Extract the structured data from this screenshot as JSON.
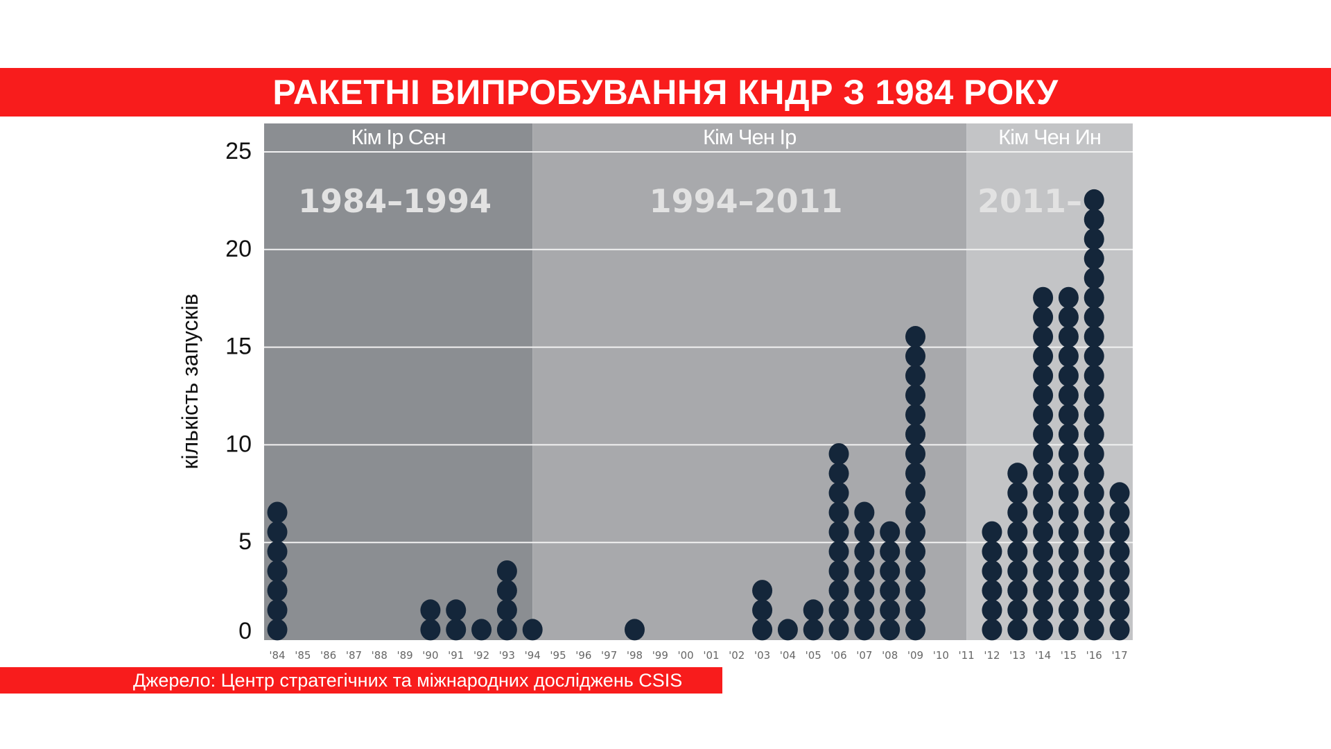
{
  "title": "РАКЕТНІ ВИПРОБУВАННЯ КНДР З 1984 РОКУ",
  "source": "Джерело:  Центр стратегічних та міжнародних досліджень CSIS",
  "colors": {
    "accent": "#f81c1c",
    "dot": "#14263a",
    "era1": "#8b8e92",
    "era2": "#a8a9ac",
    "era3": "#c3c4c6"
  },
  "chart_data": {
    "type": "dot-column",
    "ylabel": "кількість запусків",
    "ylim": [
      0,
      25
    ],
    "yticks": [
      0,
      5,
      10,
      15,
      20,
      25
    ],
    "grid": true,
    "categories": [
      "'84",
      "'85",
      "'86",
      "'87",
      "'88",
      "'89",
      "'90",
      "'91",
      "'92",
      "'93",
      "'94",
      "'95",
      "'96",
      "'97",
      "'98",
      "'99",
      "'00",
      "'01",
      "'02",
      "'03",
      "'04",
      "'05",
      "'06",
      "'07",
      "'08",
      "'09",
      "'10",
      "'11",
      "'12",
      "'13",
      "'14",
      "'15",
      "'16",
      "'17"
    ],
    "values": [
      7,
      0,
      0,
      0,
      0,
      0,
      2,
      2,
      1,
      4,
      1,
      0,
      0,
      0,
      1,
      0,
      0,
      0,
      0,
      3,
      1,
      2,
      10,
      7,
      6,
      16,
      0,
      0,
      6,
      9,
      18,
      18,
      23,
      8
    ],
    "eras": [
      {
        "leader": "Кім Ір Сен",
        "period": "1984–1994",
        "from": "'84",
        "to": "'94"
      },
      {
        "leader": "Кім Чен Ір",
        "period": "1994–2011",
        "from": "'94",
        "to": "'11"
      },
      {
        "leader": "Кім Чен Ин",
        "period": "2011–",
        "from": "'11",
        "to": "'17"
      }
    ]
  }
}
